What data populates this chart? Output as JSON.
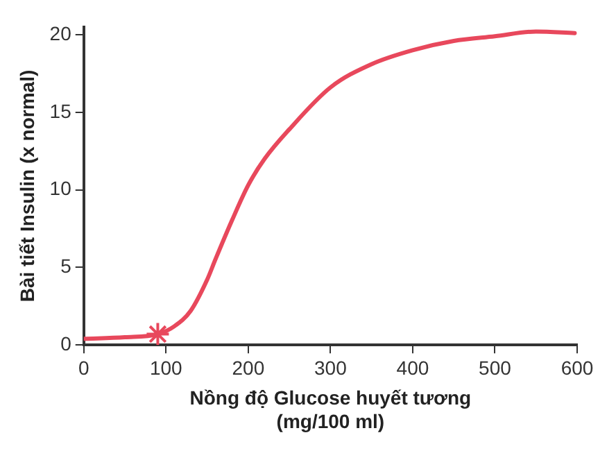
{
  "chart_data": {
    "type": "line",
    "xlabel": "Nồng độ Glucose huyết tương\n(mg/100 ml)",
    "ylabel": "Bài tiết Insulin (x normal)",
    "xlim": [
      0,
      600
    ],
    "xticks": [
      0,
      100,
      200,
      300,
      400,
      500,
      600
    ],
    "ylim": [
      0,
      20.5
    ],
    "yticks": [
      0,
      5,
      10,
      15,
      20
    ],
    "grid": false,
    "legend": false,
    "series": [
      {
        "color": "#e8485c",
        "marker": "none",
        "x": [
          0,
          50,
          90,
          110,
          130,
          150,
          160,
          180,
          200,
          220,
          250,
          300,
          350,
          400,
          450,
          500,
          550,
          597
        ],
        "values": [
          0.4,
          0.5,
          0.7,
          1.2,
          2.2,
          4.2,
          5.5,
          8.0,
          10.3,
          12.0,
          13.9,
          16.6,
          18.1,
          19.0,
          19.6,
          19.9,
          20.2,
          20.1
        ]
      },
      {
        "type": "scatter",
        "color": "#e8485c",
        "marker": "cross",
        "x": [
          90
        ],
        "values": [
          0.7
        ]
      }
    ]
  }
}
